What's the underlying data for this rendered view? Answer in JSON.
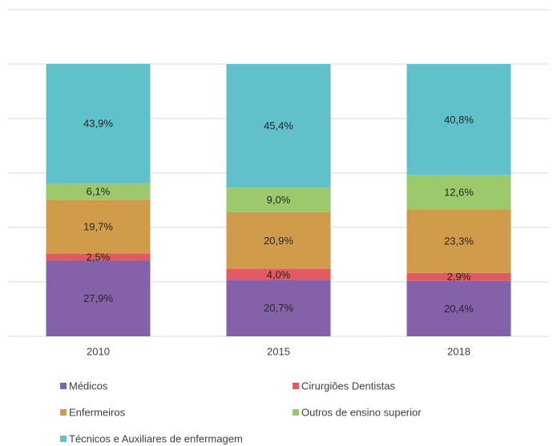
{
  "chart_data": {
    "type": "stacked_bar",
    "categories": [
      "2010",
      "2015",
      "2018"
    ],
    "series": [
      {
        "name": "Médicos",
        "color": "#8561a9",
        "values": [
          27.9,
          20.7,
          20.4
        ],
        "value_labels": [
          "27,9%",
          "20,7%",
          "20,4%"
        ]
      },
      {
        "name": "Cirurgiões Dentistas",
        "color": "#e05a5f",
        "values": [
          2.5,
          4.0,
          2.9
        ],
        "value_labels": [
          "2,5%",
          "4,0%",
          "2,9%"
        ]
      },
      {
        "name": "Enfermeiros",
        "color": "#d19b4c",
        "values": [
          19.7,
          20.9,
          23.3
        ],
        "value_labels": [
          "19,7%",
          "20,9%",
          "23,3%"
        ]
      },
      {
        "name": "Outros de ensino superior",
        "color": "#9cc96b",
        "values": [
          6.1,
          9.0,
          12.6
        ],
        "value_labels": [
          "6,1%",
          "9,0%",
          "12,6%"
        ]
      },
      {
        "name": "Técnicos e Auxiliares de enfermagem",
        "color": "#60c1cb",
        "values": [
          43.9,
          45.4,
          40.8
        ],
        "value_labels": [
          "43,9%",
          "45,4%",
          "40,8%"
        ]
      }
    ],
    "ylim": [
      0,
      120
    ],
    "yticks": [
      0,
      20,
      40,
      60,
      80,
      100,
      120
    ],
    "grid": true,
    "ytick_labels": false,
    "legend": "bottom"
  }
}
